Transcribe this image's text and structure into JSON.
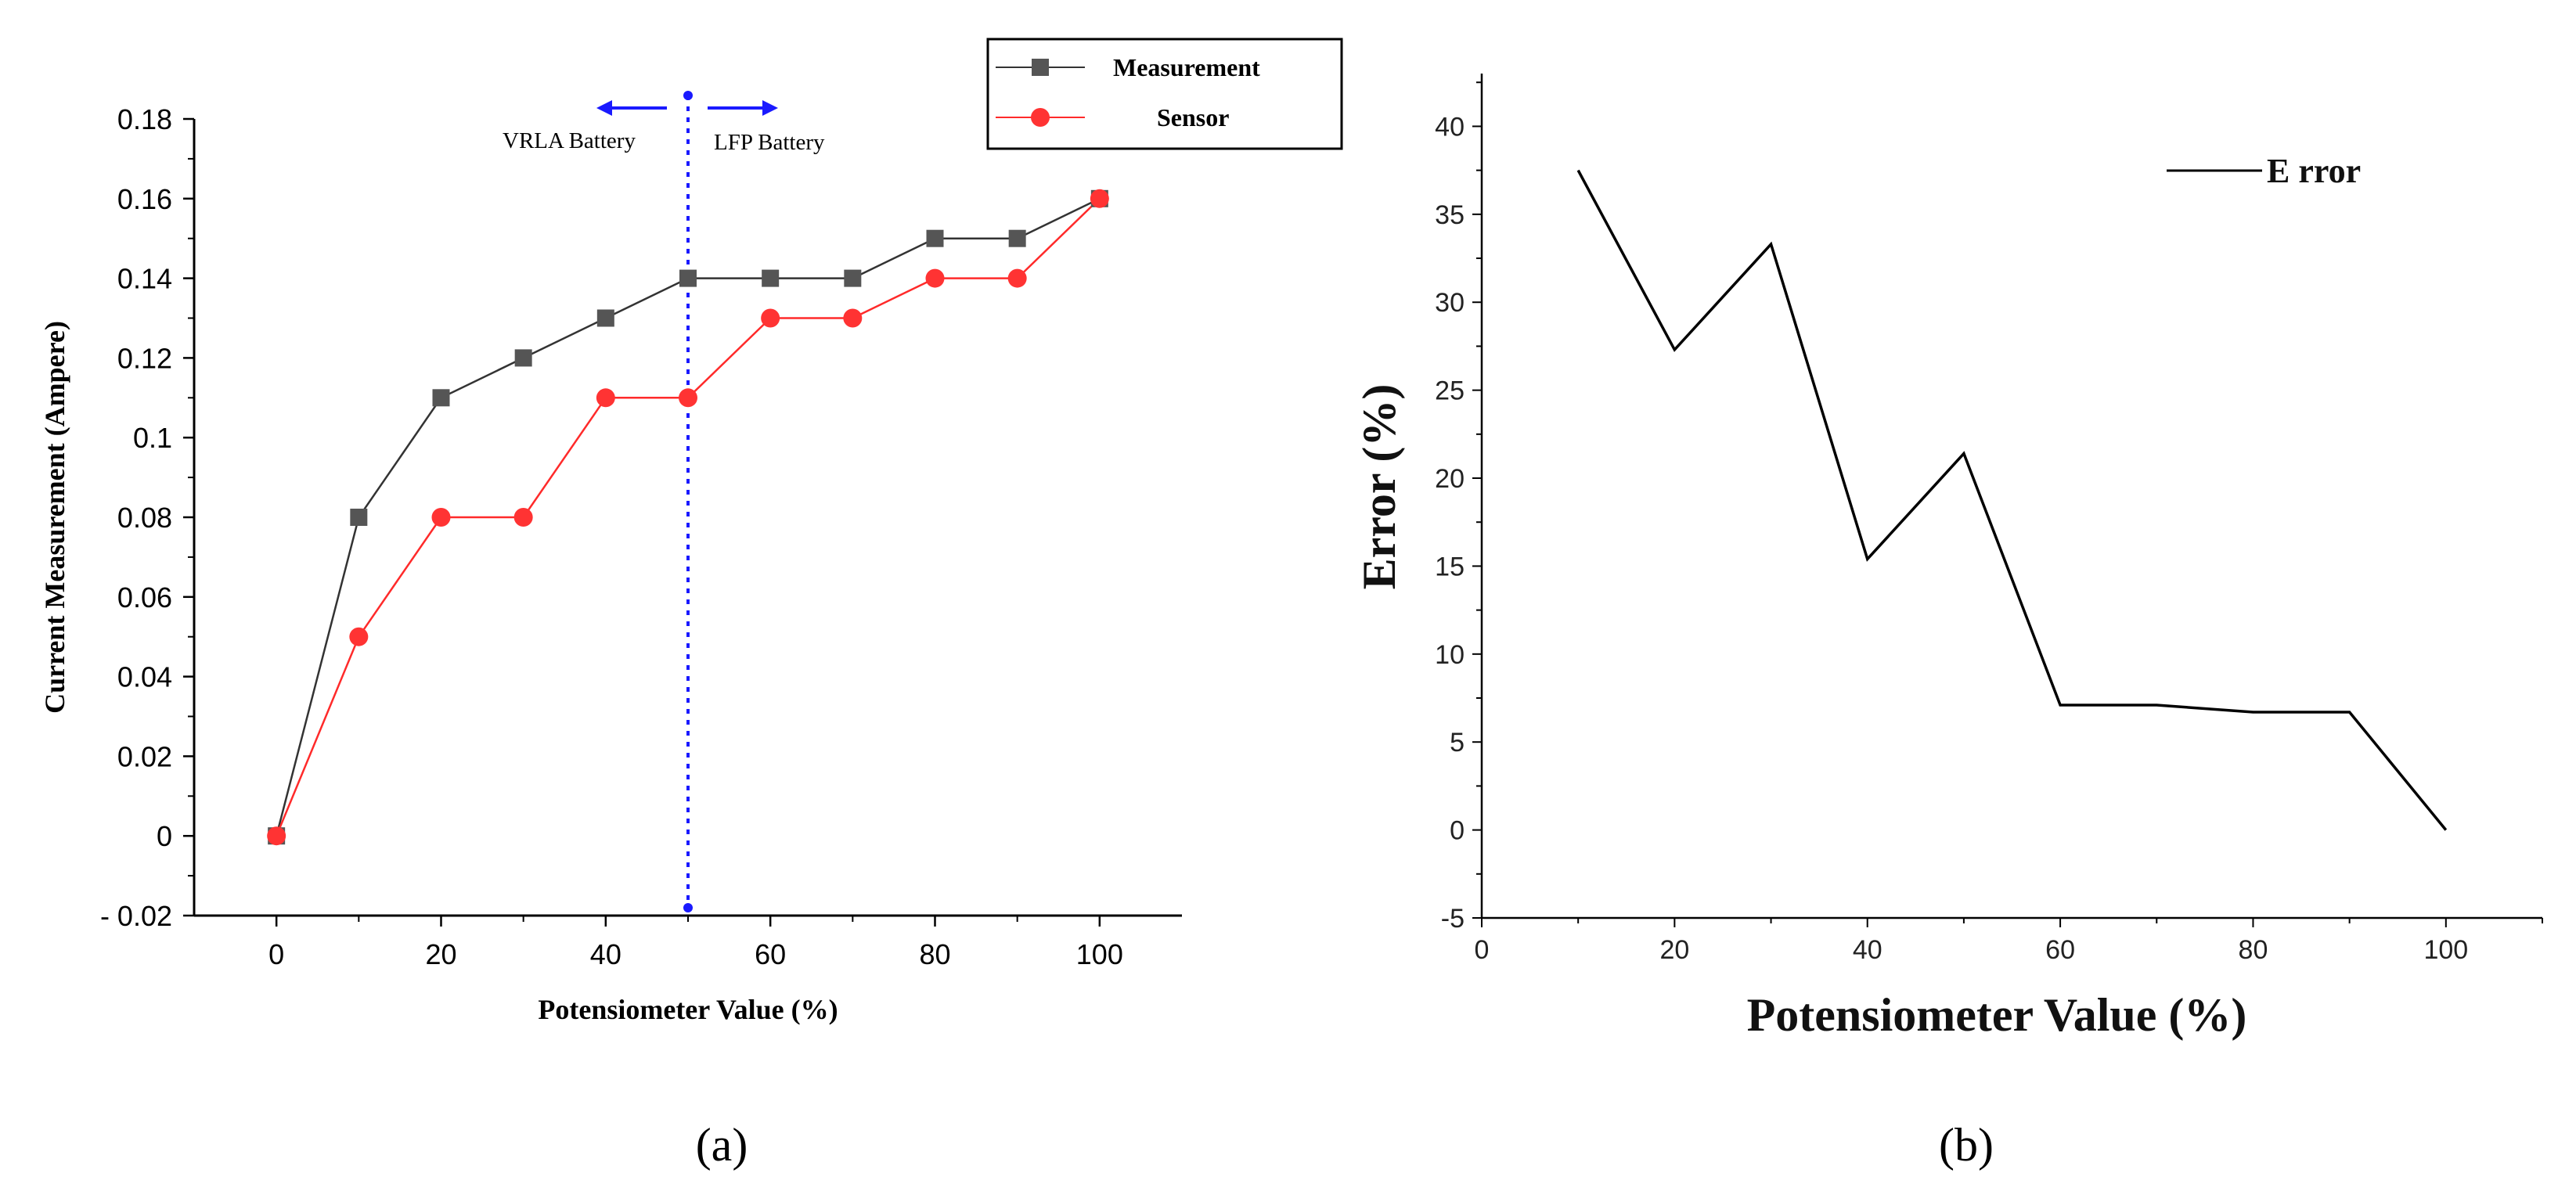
{
  "chart_data": [
    {
      "type": "line",
      "panel_label": "(a)",
      "xlabel": "Potensiometer Value (%)",
      "ylabel": "Current Measurement (Ampere)",
      "xlim": [
        -10,
        110
      ],
      "ylim": [
        -0.02,
        0.18
      ],
      "xticks": [
        0,
        20,
        40,
        60,
        80,
        100
      ],
      "xtick_labels": [
        "0",
        "20",
        "40",
        "60",
        "80",
        "100"
      ],
      "yticks": [
        -0.02,
        0,
        0.02,
        0.04,
        0.06,
        0.08,
        0.1,
        0.12,
        0.14,
        0.16,
        0.18
      ],
      "ytick_labels": [
        "- 0.02",
        "0",
        "0.02",
        "0.04",
        "0.06",
        "0.08",
        "0.1",
        "0.12",
        "0.14",
        "0.16",
        "0.18"
      ],
      "x": [
        0,
        10,
        20,
        30,
        40,
        50,
        60,
        70,
        80,
        90,
        100
      ],
      "series": [
        {
          "name": "Measurement",
          "color": "#555555",
          "line_color": "#333333",
          "marker": "square",
          "values": [
            0,
            0.08,
            0.11,
            0.12,
            0.13,
            0.14,
            0.14,
            0.14,
            0.15,
            0.15,
            0.16
          ]
        },
        {
          "name": "Sensor",
          "color": "#ff3333",
          "line_color": "#ff2a2a",
          "marker": "circle",
          "values": [
            0,
            0.05,
            0.08,
            0.08,
            0.11,
            0.11,
            0.13,
            0.13,
            0.14,
            0.14,
            0.16
          ]
        }
      ],
      "divider": {
        "x": 50,
        "color": "#1a1aff",
        "left_label": "VRLA Battery",
        "right_label": "LFP Battery"
      },
      "legend_position": "top-right"
    },
    {
      "type": "line",
      "panel_label": "(b)",
      "xlabel": "Potensiometer Value (%)",
      "ylabel": "Error (%)",
      "xlim": [
        0,
        110
      ],
      "ylim": [
        -5,
        43
      ],
      "xticks": [
        0,
        20,
        40,
        60,
        80,
        100
      ],
      "xtick_labels": [
        "0",
        "20",
        "40",
        "60",
        "80",
        "100"
      ],
      "yticks": [
        -5,
        0,
        5,
        10,
        15,
        20,
        25,
        30,
        35,
        40
      ],
      "ytick_labels": [
        "-5",
        "0",
        "5",
        "10",
        "15",
        "20",
        "25",
        "30",
        "35",
        "40"
      ],
      "x": [
        10,
        20,
        30,
        40,
        50,
        60,
        70,
        80,
        90,
        100
      ],
      "series": [
        {
          "name": "Error",
          "legend_label": "E rror",
          "color": "#000000",
          "values": [
            37.5,
            27.3,
            33.3,
            15.4,
            21.4,
            7.1,
            7.1,
            6.7,
            6.7,
            0
          ]
        }
      ],
      "legend_position": "top-right"
    }
  ]
}
